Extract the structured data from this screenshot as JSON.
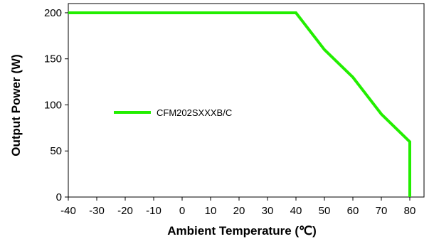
{
  "chart_data": {
    "type": "line",
    "title": "",
    "xlabel": "Ambient Temperature (℃)",
    "ylabel": "Output Power (W)",
    "xlim": [
      -40,
      85
    ],
    "ylim": [
      0,
      210
    ],
    "x_ticks": [
      -40,
      -30,
      -20,
      -10,
      0,
      10,
      20,
      30,
      40,
      50,
      60,
      70,
      80
    ],
    "y_ticks": [
      0,
      50,
      100,
      150,
      200
    ],
    "grid": false,
    "legend_position": "center-left",
    "series": [
      {
        "name": "CFM202SXXXB/C",
        "color": "#22ee00",
        "x": [
          -40,
          40,
          50,
          60,
          70,
          80,
          80
        ],
        "y": [
          200,
          200,
          160,
          130,
          90,
          60,
          0
        ]
      }
    ]
  }
}
